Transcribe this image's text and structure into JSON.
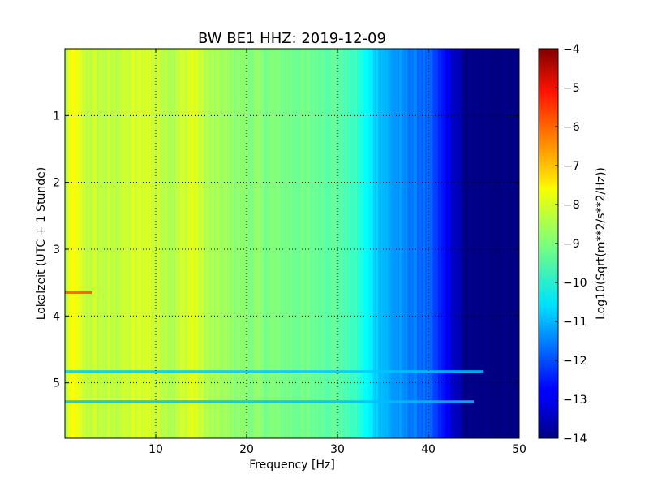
{
  "chart_data": {
    "type": "heatmap",
    "title": "BW BE1 HHZ: 2019-12-09",
    "xlabel": "Frequency [Hz]",
    "ylabel": "Lokalzeit (UTC + 1 Stunde)",
    "xlim": [
      0,
      50
    ],
    "ylim": [
      5.83,
      0
    ],
    "x_ticks": [
      10,
      20,
      30,
      40,
      50
    ],
    "y_ticks": [
      1,
      2,
      3,
      4,
      5
    ],
    "grid": true,
    "colormap": "jet",
    "colorbar": {
      "label": "Log10(Sqrt(m**2/s**2/Hz))",
      "range": [
        -14,
        -4
      ],
      "ticks": [
        -4,
        -5,
        -6,
        -7,
        -8,
        -9,
        -10,
        -11,
        -12,
        -13,
        -14
      ]
    },
    "spectrum_profile": {
      "frequency_hz": [
        0,
        0.5,
        1,
        2,
        5,
        9,
        12,
        14,
        16,
        20,
        25,
        30,
        32,
        34,
        36,
        38,
        40,
        41,
        42,
        43,
        44,
        45,
        50
      ],
      "level": [
        -8.6,
        -8.0,
        -7.8,
        -8.3,
        -8.4,
        -8.1,
        -8.5,
        -8.0,
        -8.6,
        -8.9,
        -9.1,
        -9.3,
        -9.7,
        -10.6,
        -11.2,
        -11.5,
        -11.8,
        -12.3,
        -12.8,
        -13.4,
        -13.9,
        -14.0,
        -14.0
      ]
    },
    "events": [
      {
        "time_h": 3.65,
        "level": -6.0,
        "fmax_hz": 3
      },
      {
        "time_h": 4.83,
        "level": -10.8,
        "fmax_hz": 46
      },
      {
        "time_h": 5.28,
        "level": -10.9,
        "fmax_hz": 45
      }
    ]
  }
}
